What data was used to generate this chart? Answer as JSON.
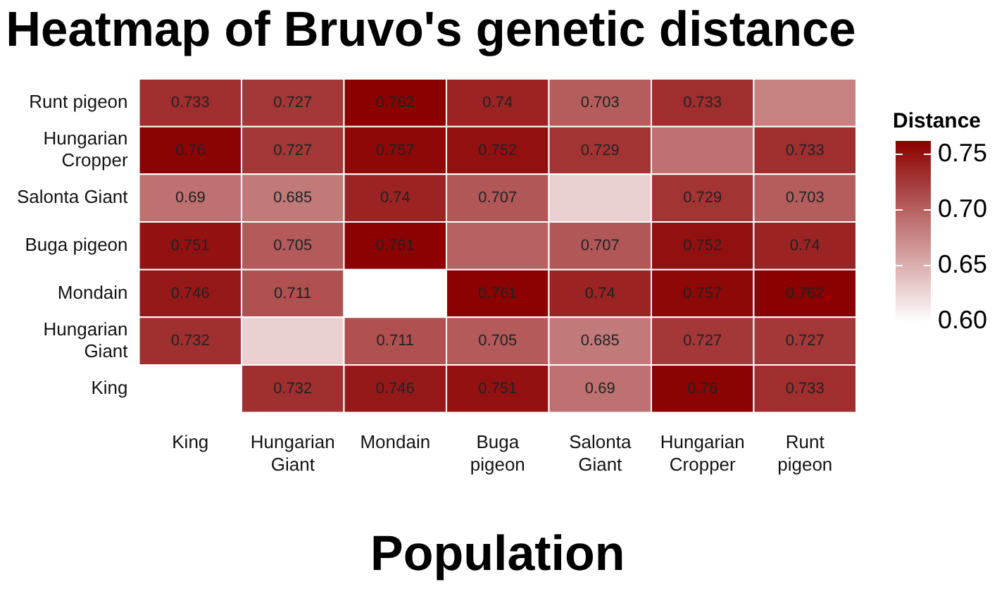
{
  "chart_data": {
    "type": "heatmap",
    "title": "Heatmap of Bruvo's genetic distance",
    "xlabel": "Population",
    "legend_title": "Distance",
    "color": "#8b0000",
    "categories": [
      "King",
      "Hungarian Giant",
      "Mondain",
      "Buga pigeon",
      "Salonta Giant",
      "Hungarian Cropper",
      "Runt pigeon"
    ],
    "y_categories": [
      "Runt pigeon",
      "Hungarian Cropper",
      "Salonta Giant",
      "Buga pigeon",
      "Mondain",
      "Hungarian Giant",
      "King"
    ],
    "cells": [
      [
        0.733,
        0.727,
        0.762,
        0.74,
        0.703,
        0.733,
        0.68
      ],
      [
        0.76,
        0.727,
        0.757,
        0.752,
        0.729,
        0.69,
        0.733
      ],
      [
        0.69,
        0.685,
        0.74,
        0.707,
        0.63,
        0.729,
        0.703
      ],
      [
        0.751,
        0.705,
        0.761,
        0.7,
        0.707,
        0.752,
        0.74
      ],
      [
        0.746,
        0.711,
        0.6,
        0.761,
        0.74,
        0.757,
        0.762
      ],
      [
        0.732,
        0.63,
        0.711,
        0.705,
        0.685,
        0.727,
        0.727
      ],
      [
        null,
        0.732,
        0.746,
        0.751,
        0.69,
        0.76,
        0.733
      ]
    ],
    "cell_labels": [
      [
        "0.733",
        "0.727",
        "0.762",
        "0.74",
        "0.703",
        "0.733",
        null
      ],
      [
        "0.76",
        "0.727",
        "0.757",
        "0.752",
        "0.729",
        null,
        "0.733"
      ],
      [
        "0.69",
        "0.685",
        "0.74",
        "0.707",
        null,
        "0.729",
        "0.703"
      ],
      [
        "0.751",
        "0.705",
        "0.761",
        null,
        "0.707",
        "0.752",
        "0.74"
      ],
      [
        "0.746",
        "0.711",
        null,
        "0.761",
        "0.74",
        "0.757",
        "0.762"
      ],
      [
        "0.732",
        null,
        "0.711",
        "0.705",
        "0.685",
        "0.727",
        "0.727"
      ],
      [
        null,
        "0.732",
        "0.746",
        "0.751",
        "0.69",
        "0.76",
        "0.733"
      ]
    ],
    "clim": [
      0.6,
      0.762
    ],
    "cticks": [
      {
        "value": 0.6,
        "label": "0.60"
      },
      0.65,
      {
        "value": 0.7,
        "label": "0.70"
      },
      0.75
    ]
  }
}
